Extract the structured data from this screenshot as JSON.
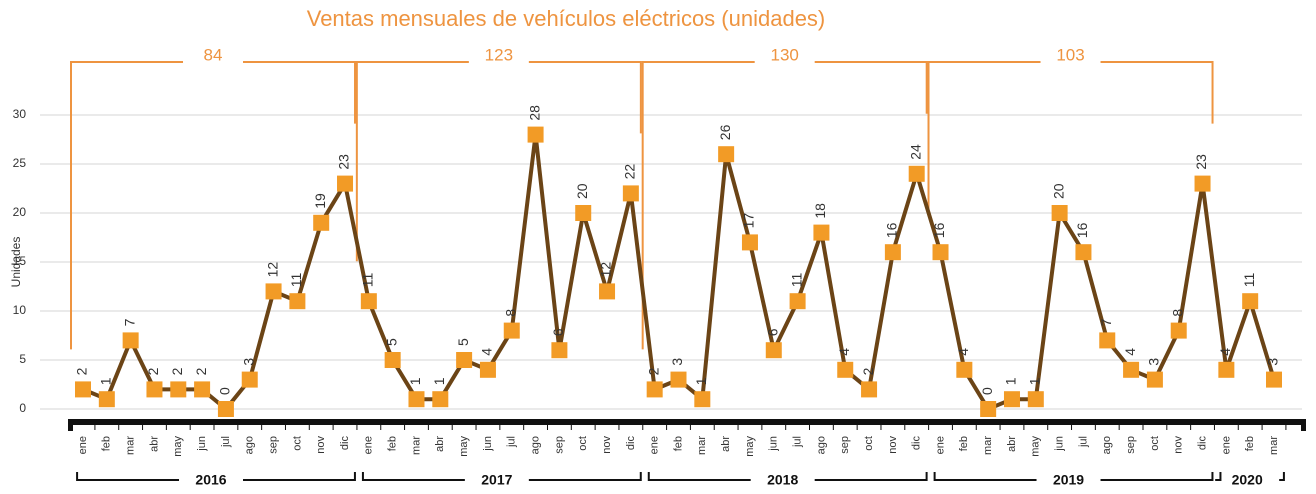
{
  "chart_data": {
    "type": "line",
    "title": "Ventas mensuales de vehículos eléctricos (unidades)",
    "y_label": "Unidades",
    "categories": [
      "ene",
      "feb",
      "mar",
      "abr",
      "may",
      "jun",
      "jul",
      "ago",
      "sep",
      "oct",
      "nov",
      "dic",
      "ene",
      "feb",
      "mar",
      "abr",
      "may",
      "jun",
      "jul",
      "ago",
      "sep",
      "oct",
      "nov",
      "dic",
      "ene",
      "feb",
      "mar",
      "abr",
      "may",
      "jun",
      "jul",
      "ago",
      "sep",
      "oct",
      "nov",
      "dic",
      "ene",
      "feb",
      "mar",
      "abr",
      "may",
      "jun",
      "jul",
      "ago",
      "sep",
      "oct",
      "nov",
      "dic",
      "ene",
      "feb",
      "mar"
    ],
    "series": [
      {
        "name": "Unidades",
        "color": "#6b4416",
        "marker_color": "#f29b26",
        "values": [
          2,
          1,
          7,
          2,
          2,
          2,
          0,
          3,
          12,
          11,
          19,
          23,
          11,
          5,
          1,
          1,
          5,
          4,
          8,
          28,
          6,
          20,
          12,
          22,
          2,
          3,
          1,
          26,
          17,
          6,
          11,
          18,
          4,
          2,
          16,
          24,
          16,
          4,
          0,
          1,
          1,
          20,
          16,
          7,
          4,
          3,
          8,
          23,
          4,
          11,
          3
        ]
      }
    ],
    "years": [
      "2016",
      "2017",
      "2018",
      "2019",
      "2020"
    ],
    "year_totals": [
      84,
      123,
      130,
      103
    ],
    "ylim": [
      0,
      30
    ],
    "yticks": [
      0,
      5,
      10,
      15,
      20,
      25,
      30
    ],
    "grid": true
  }
}
